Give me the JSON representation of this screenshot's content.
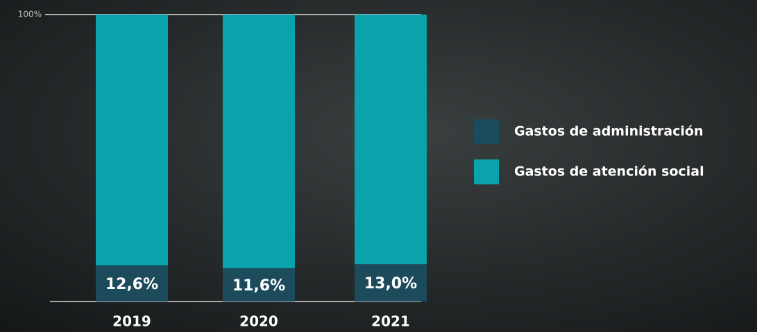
{
  "chart_data": {
    "type": "bar",
    "stacked": true,
    "categories": [
      "2019",
      "2020",
      "2021"
    ],
    "series": [
      {
        "name": "Gastos de administración",
        "color": "#1c4b5c",
        "values": [
          12.6,
          11.6,
          13.0
        ],
        "value_labels": [
          "12,6%",
          "11,6%",
          "13,0%"
        ]
      },
      {
        "name": "Gastos de atención social",
        "color": "#0aa3ab",
        "values": [
          87.4,
          88.4,
          87.0
        ]
      }
    ],
    "ylim": [
      0,
      100
    ],
    "yticks": [
      {
        "value": 100,
        "label": "100%"
      }
    ],
    "grid": true,
    "legend": "right"
  }
}
